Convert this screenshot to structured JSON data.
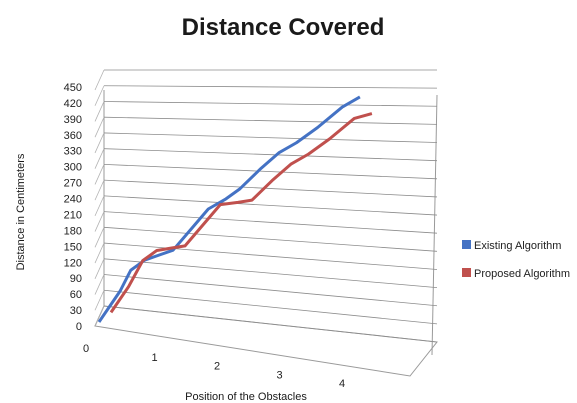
{
  "chart_data": {
    "type": "line",
    "title": "Distance Covered",
    "xlabel": "Position of the Obstacles",
    "ylabel": "Distance in Centimeters",
    "x_ticks": [
      "0",
      "1",
      "2",
      "3",
      "4"
    ],
    "y_ticks": [
      0,
      30,
      60,
      90,
      120,
      150,
      180,
      210,
      240,
      270,
      300,
      330,
      360,
      390,
      420,
      450
    ],
    "ylim": [
      0,
      450
    ],
    "style": "3d-line",
    "grid": true,
    "legend_position": "right",
    "series": [
      {
        "name": "Existing Algorithm",
        "color": "#4472c4",
        "x": [
          0,
          0.3,
          0.45,
          0.65,
          0.85,
          1.05,
          1.3,
          1.55,
          1.8,
          2.0,
          2.3,
          2.55,
          2.8,
          3.1,
          3.45,
          3.7
        ],
        "values": [
          0,
          60,
          100,
          120,
          130,
          140,
          180,
          220,
          240,
          260,
          300,
          330,
          350,
          380,
          420,
          440
        ]
      },
      {
        "name": "Proposed Algorithm",
        "color": "#c0504d",
        "x": [
          0,
          0.25,
          0.45,
          0.65,
          0.85,
          1.05,
          1.3,
          1.55,
          1.8,
          2.0,
          2.3,
          2.55,
          2.8,
          3.1,
          3.45,
          3.7
        ],
        "values": [
          0,
          50,
          100,
          120,
          125,
          130,
          170,
          210,
          215,
          220,
          260,
          290,
          310,
          340,
          380,
          390
        ]
      }
    ]
  }
}
